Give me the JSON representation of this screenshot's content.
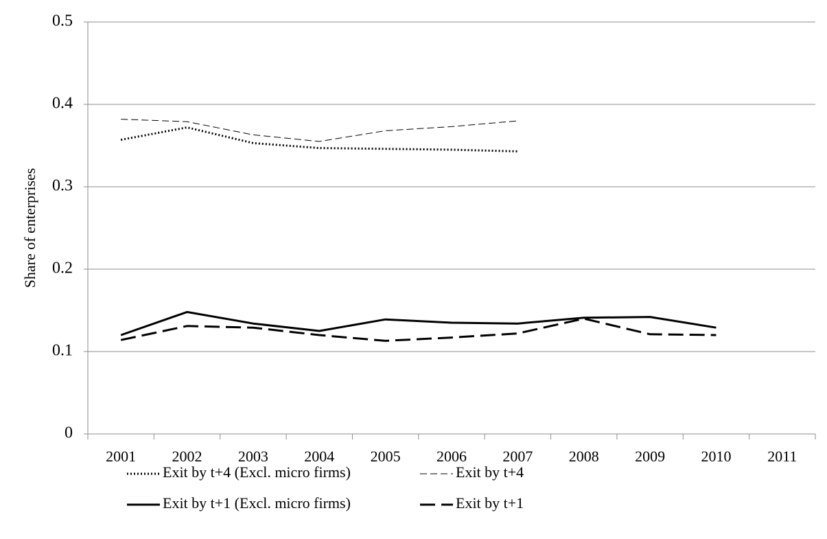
{
  "chart_data": {
    "type": "line",
    "y_label": "Share of enterprises",
    "categories": [
      "2001",
      "2002",
      "2003",
      "2004",
      "2005",
      "2006",
      "2007",
      "2008",
      "2009",
      "2010",
      "2011"
    ],
    "series": [
      {
        "name": "Exit by t+4 (Excl. micro firms)",
        "color": "#000000",
        "style": "dotted",
        "values": [
          0.357,
          0.372,
          0.353,
          0.347,
          0.346,
          0.345,
          0.343,
          null,
          null,
          null,
          null
        ]
      },
      {
        "name": "Exit by t+4",
        "color": "#000000",
        "style": "dashed",
        "values": [
          0.382,
          0.379,
          0.363,
          0.355,
          0.368,
          0.373,
          0.38,
          null,
          null,
          null,
          null
        ]
      },
      {
        "name": "Exit by t+1 (Excl. micro firms)",
        "color": "#000000",
        "style": "solid",
        "values": [
          0.12,
          0.148,
          0.134,
          0.125,
          0.139,
          0.135,
          0.134,
          0.141,
          0.142,
          0.129,
          null
        ]
      },
      {
        "name": "Exit by t+1",
        "color": "#000000",
        "style": "long-dash",
        "values": [
          0.114,
          0.131,
          0.129,
          0.12,
          0.113,
          0.117,
          0.122,
          0.14,
          0.121,
          0.12,
          null
        ]
      }
    ],
    "ylim": [
      0,
      0.5
    ],
    "yticks": [
      0,
      0.1,
      0.2,
      0.3,
      0.4,
      0.5
    ],
    "grid": true,
    "legend": "bottom"
  }
}
